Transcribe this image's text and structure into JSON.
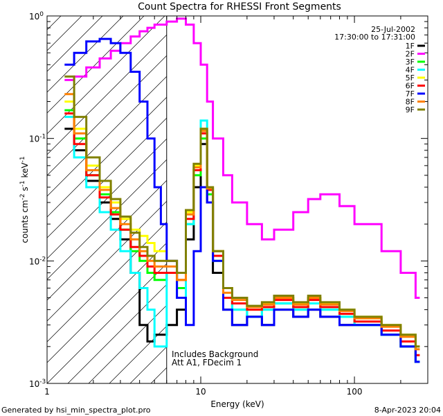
{
  "chart_data": {
    "type": "line",
    "title": "Count Spectra for RHESSI Front Segments",
    "xlabel": "Energy (keV)",
    "ylabel": "counts cm-2 s-1 keV-1",
    "xscale": "log",
    "yscale": "log",
    "xlim": [
      1,
      300
    ],
    "ylim": [
      0.001,
      1
    ],
    "x_tick_labels": [
      {
        "value": 1,
        "label": "1"
      },
      {
        "value": 10,
        "label": "10"
      },
      {
        "value": 100,
        "label": "100"
      }
    ],
    "y_tick_labels": [
      {
        "value": 1,
        "base": "10",
        "exp": "0"
      },
      {
        "value": 0.1,
        "base": "10",
        "exp": "-1"
      },
      {
        "value": 0.01,
        "base": "10",
        "exp": "-2"
      },
      {
        "value": 0.001,
        "base": "10",
        "exp": "-3"
      }
    ],
    "date": "25-Jul-2002",
    "time_range": "17:30:00 to 17:31:00",
    "legend_position": "top-right",
    "annotation_line1": "Includes Background",
    "annotation_line2": "Att A1, FDecim 1",
    "vertical_marker_x": 6,
    "series": [
      {
        "name": "1F",
        "color": "#000000",
        "x": [
          1.3,
          1.5,
          1.8,
          2.2,
          2.6,
          3,
          3.5,
          4,
          4.5,
          5,
          6,
          7,
          8,
          9,
          10,
          11,
          12,
          14,
          16,
          20,
          25,
          30,
          40,
          50,
          60,
          80,
          100,
          150,
          200,
          250
        ],
        "y": [
          0.12,
          0.08,
          0.045,
          0.03,
          0.022,
          0.015,
          0.008,
          0.003,
          0.0022,
          0.0025,
          0.003,
          0.004,
          0.015,
          0.04,
          0.09,
          0.03,
          0.008,
          0.004,
          0.003,
          0.0035,
          0.003,
          0.004,
          0.0035,
          0.004,
          0.0035,
          0.003,
          0.003,
          0.0025,
          0.002,
          0.0015
        ]
      },
      {
        "name": "2F",
        "color": "#ff00ff",
        "x": [
          1.3,
          1.5,
          1.8,
          2.2,
          2.6,
          3,
          3.5,
          4,
          4.5,
          5,
          6,
          7,
          8,
          9,
          10,
          11,
          12,
          14,
          16,
          20,
          25,
          30,
          40,
          50,
          60,
          80,
          100,
          150,
          200,
          250
        ],
        "y": [
          0.3,
          0.32,
          0.38,
          0.45,
          0.52,
          0.6,
          0.68,
          0.75,
          0.8,
          0.85,
          0.9,
          0.95,
          0.85,
          0.6,
          0.4,
          0.2,
          0.1,
          0.05,
          0.03,
          0.02,
          0.015,
          0.018,
          0.025,
          0.032,
          0.035,
          0.028,
          0.02,
          0.012,
          0.008,
          0.005
        ]
      },
      {
        "name": "3F",
        "color": "#00ff00",
        "x": [
          1.3,
          1.5,
          1.8,
          2.2,
          2.6,
          3,
          3.5,
          4,
          4.5,
          5,
          6,
          7,
          8,
          9,
          10,
          11,
          12,
          14,
          16,
          20,
          25,
          30,
          40,
          50,
          60,
          80,
          100,
          150,
          200,
          250
        ],
        "y": [
          0.17,
          0.1,
          0.05,
          0.035,
          0.025,
          0.018,
          0.012,
          0.01,
          0.008,
          0.007,
          0.008,
          0.006,
          0.02,
          0.05,
          0.1,
          0.035,
          0.01,
          0.005,
          0.004,
          0.0035,
          0.004,
          0.0045,
          0.004,
          0.005,
          0.004,
          0.0035,
          0.003,
          0.0025,
          0.002,
          0.0015
        ]
      },
      {
        "name": "4F",
        "color": "#00ffff",
        "x": [
          1.3,
          1.5,
          1.8,
          2.2,
          2.6,
          3,
          3.5,
          4,
          4.5,
          5,
          6,
          7,
          8,
          9,
          10,
          11,
          12,
          14,
          16,
          20,
          25,
          30,
          40,
          50,
          60,
          80,
          100,
          150,
          200,
          250
        ],
        "y": [
          0.15,
          0.07,
          0.04,
          0.025,
          0.018,
          0.012,
          0.008,
          0.006,
          0.004,
          0.002,
          0.008,
          0.005,
          0.02,
          0.06,
          0.14,
          0.04,
          0.012,
          0.005,
          0.004,
          0.0035,
          0.004,
          0.0045,
          0.004,
          0.0045,
          0.004,
          0.0035,
          0.003,
          0.0025,
          0.002,
          0.0015
        ]
      },
      {
        "name": "5F",
        "color": "#ffff00",
        "x": [
          1.3,
          1.5,
          1.8,
          2.2,
          2.6,
          3,
          3.5,
          4,
          4.5,
          5,
          6,
          7,
          8,
          9,
          10,
          11,
          12,
          14,
          16,
          20,
          25,
          30,
          40,
          50,
          60,
          80,
          100,
          150,
          200,
          250
        ],
        "y": [
          0.2,
          0.12,
          0.06,
          0.04,
          0.03,
          0.022,
          0.018,
          0.016,
          0.014,
          0.012,
          0.01,
          0.008,
          0.025,
          0.06,
          0.12,
          0.04,
          0.012,
          0.006,
          0.005,
          0.004,
          0.0045,
          0.005,
          0.0045,
          0.005,
          0.0045,
          0.004,
          0.0035,
          0.003,
          0.0025,
          0.002
        ]
      },
      {
        "name": "6F",
        "color": "#ff0000",
        "x": [
          1.3,
          1.5,
          1.8,
          2.2,
          2.6,
          3,
          3.5,
          4,
          4.5,
          5,
          6,
          7,
          8,
          9,
          10,
          11,
          12,
          14,
          16,
          20,
          25,
          30,
          40,
          50,
          60,
          80,
          100,
          150,
          200,
          250
        ],
        "y": [
          0.16,
          0.09,
          0.05,
          0.033,
          0.024,
          0.018,
          0.013,
          0.011,
          0.009,
          0.008,
          0.008,
          0.007,
          0.022,
          0.055,
          0.11,
          0.038,
          0.011,
          0.005,
          0.0045,
          0.004,
          0.0042,
          0.0048,
          0.0042,
          0.0048,
          0.0042,
          0.0037,
          0.0032,
          0.0027,
          0.0022,
          0.0017
        ]
      },
      {
        "name": "7F",
        "color": "#0000ff",
        "x": [
          1.3,
          1.5,
          1.8,
          2.2,
          2.6,
          3,
          3.5,
          4,
          4.5,
          5,
          5.5,
          6,
          7,
          8,
          9,
          10,
          11,
          12,
          14,
          16,
          20,
          25,
          30,
          40,
          50,
          60,
          80,
          100,
          150,
          200,
          250
        ],
        "y": [
          0.4,
          0.5,
          0.62,
          0.65,
          0.6,
          0.5,
          0.35,
          0.2,
          0.1,
          0.04,
          0.02,
          0.01,
          0.005,
          0.003,
          0.012,
          0.04,
          0.03,
          0.01,
          0.004,
          0.003,
          0.0035,
          0.003,
          0.004,
          0.0035,
          0.004,
          0.0035,
          0.003,
          0.003,
          0.0025,
          0.002,
          0.0015
        ]
      },
      {
        "name": "8F",
        "color": "#ff8000",
        "x": [
          1.3,
          1.5,
          1.8,
          2.2,
          2.6,
          3,
          3.5,
          4,
          4.5,
          5,
          6,
          7,
          8,
          9,
          10,
          11,
          12,
          14,
          16,
          20,
          25,
          30,
          40,
          50,
          60,
          80,
          100,
          150,
          200,
          250
        ],
        "y": [
          0.23,
          0.11,
          0.055,
          0.038,
          0.027,
          0.02,
          0.015,
          0.012,
          0.01,
          0.009,
          0.009,
          0.007,
          0.024,
          0.058,
          0.115,
          0.039,
          0.012,
          0.0055,
          0.0048,
          0.0042,
          0.0044,
          0.005,
          0.0044,
          0.005,
          0.0044,
          0.0039,
          0.0034,
          0.0029,
          0.0024,
          0.0019
        ]
      },
      {
        "name": "9F",
        "color": "#808000",
        "x": [
          1.3,
          1.5,
          1.8,
          2.2,
          2.6,
          3,
          3.5,
          4,
          4.5,
          5,
          6,
          7,
          8,
          9,
          10,
          11,
          12,
          14,
          16,
          20,
          25,
          30,
          40,
          50,
          60,
          80,
          100,
          150,
          200,
          250
        ],
        "y": [
          0.32,
          0.15,
          0.07,
          0.045,
          0.032,
          0.023,
          0.017,
          0.013,
          0.011,
          0.01,
          0.01,
          0.008,
          0.026,
          0.062,
          0.12,
          0.04,
          0.012,
          0.006,
          0.005,
          0.0043,
          0.0046,
          0.0052,
          0.0046,
          0.0052,
          0.0046,
          0.004,
          0.0035,
          0.003,
          0.0025,
          0.002
        ]
      }
    ]
  },
  "footer": {
    "generated_by": "Generated by hsi_min_spectra_plot.pro",
    "generated_date": "8-Apr-2023 20:04"
  }
}
